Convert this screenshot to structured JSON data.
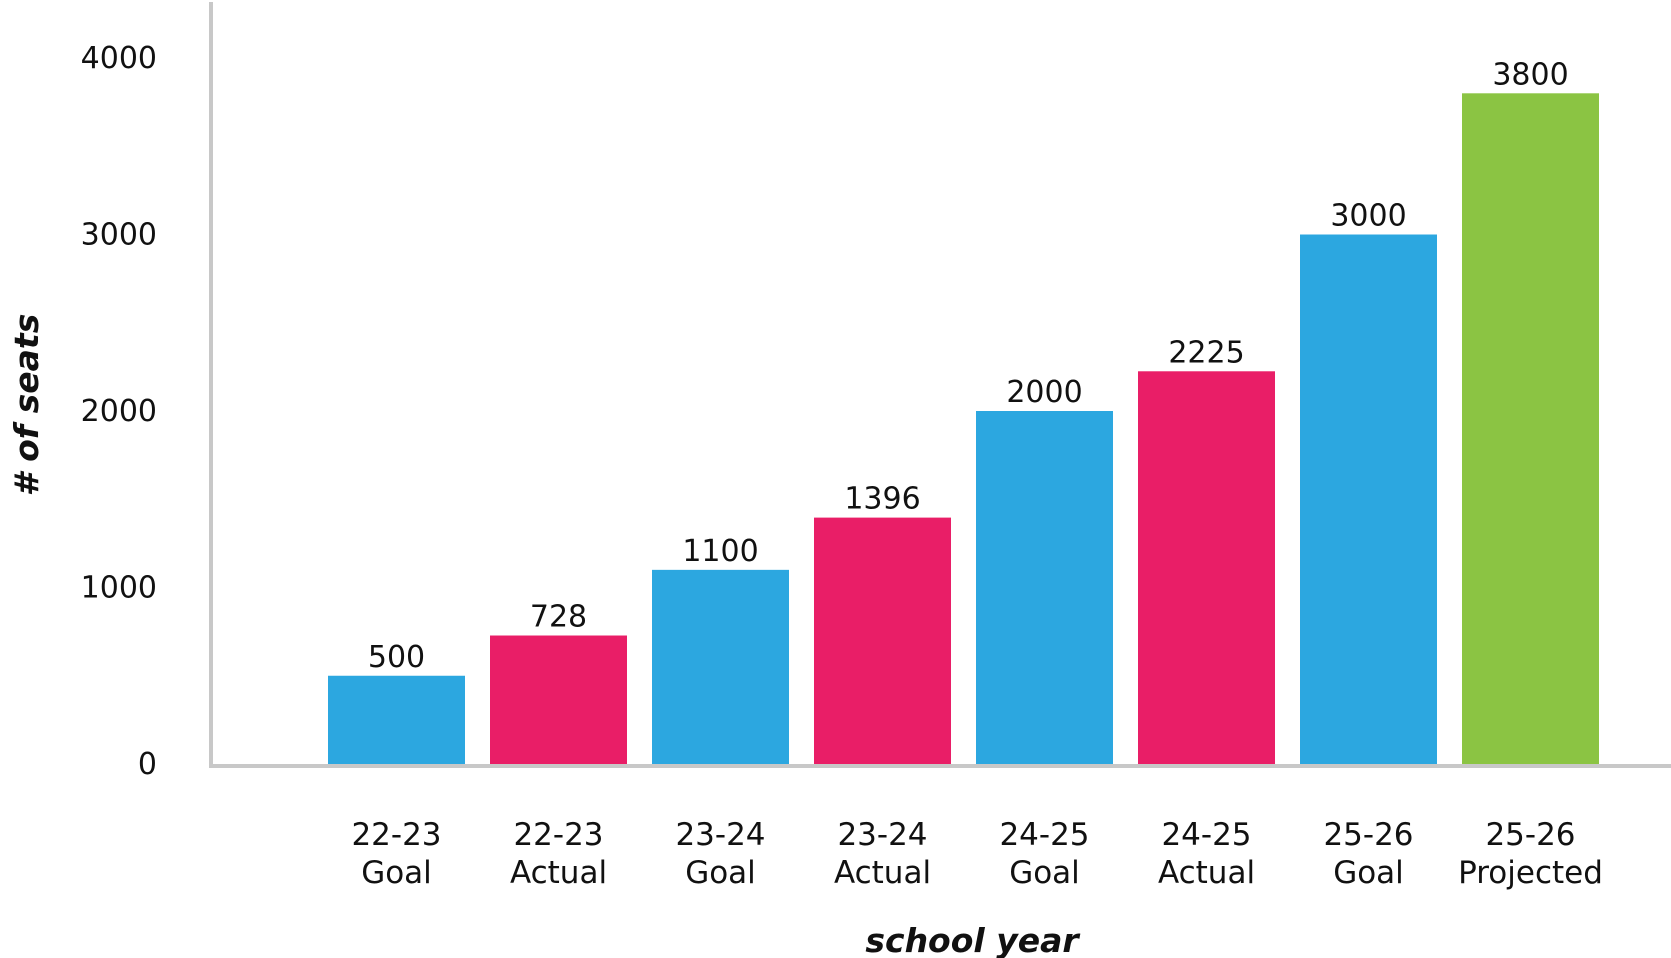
{
  "chart_data": {
    "type": "bar",
    "title": "",
    "xlabel": "school year",
    "ylabel": "# of seats",
    "ylim": [
      0,
      4000
    ],
    "yticks": [
      0,
      1000,
      2000,
      3000,
      4000
    ],
    "grid": false,
    "categories": [
      [
        "22-23",
        "Goal"
      ],
      [
        "22-23",
        "Actual"
      ],
      [
        "23-24",
        "Goal"
      ],
      [
        "23-24",
        "Actual"
      ],
      [
        "24-25",
        "Goal"
      ],
      [
        "24-25",
        "Actual"
      ],
      [
        "25-26",
        "Goal"
      ],
      [
        "25-26",
        "Projected"
      ]
    ],
    "values": [
      500,
      728,
      1100,
      1396,
      2000,
      2225,
      3000,
      3800
    ],
    "colors": [
      "#2ca7e0",
      "#e91e67",
      "#2ca7e0",
      "#e91e67",
      "#2ca7e0",
      "#e91e67",
      "#2ca7e0",
      "#8bc443"
    ]
  }
}
